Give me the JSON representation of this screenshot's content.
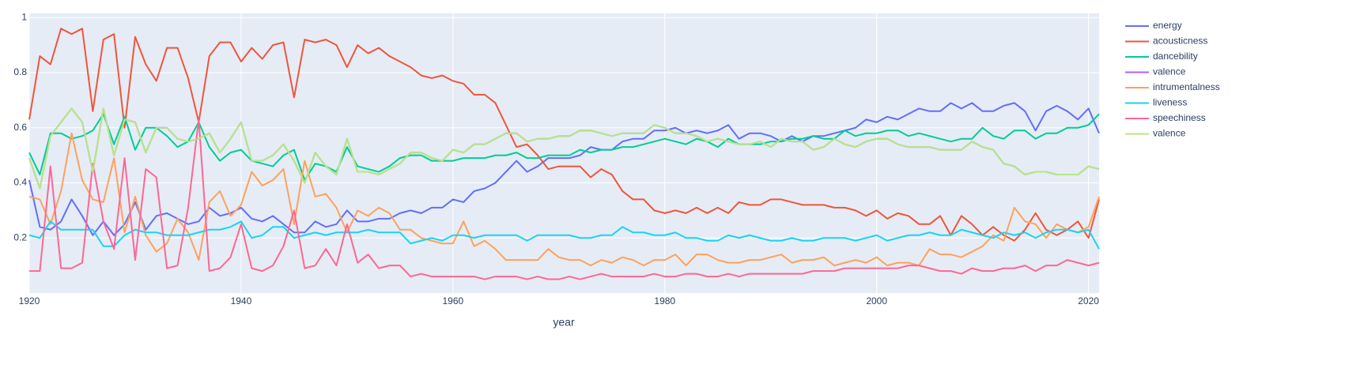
{
  "chart_data": {
    "type": "line",
    "x_label": "year",
    "x": [
      1920,
      1921,
      1922,
      1923,
      1924,
      1925,
      1926,
      1927,
      1928,
      1929,
      1930,
      1931,
      1932,
      1933,
      1934,
      1935,
      1936,
      1937,
      1938,
      1939,
      1940,
      1941,
      1942,
      1943,
      1944,
      1945,
      1946,
      1947,
      1948,
      1949,
      1950,
      1951,
      1952,
      1953,
      1954,
      1955,
      1956,
      1957,
      1958,
      1959,
      1960,
      1961,
      1962,
      1963,
      1964,
      1965,
      1966,
      1967,
      1968,
      1969,
      1970,
      1971,
      1972,
      1973,
      1974,
      1975,
      1976,
      1977,
      1978,
      1979,
      1980,
      1981,
      1982,
      1983,
      1984,
      1985,
      1986,
      1987,
      1988,
      1989,
      1990,
      1991,
      1992,
      1993,
      1994,
      1995,
      1996,
      1997,
      1998,
      1999,
      2000,
      2001,
      2002,
      2003,
      2004,
      2005,
      2006,
      2007,
      2008,
      2009,
      2010,
      2011,
      2012,
      2013,
      2014,
      2015,
      2016,
      2017,
      2018,
      2019,
      2020,
      2021
    ],
    "xlim": [
      1920,
      2021
    ],
    "xticks": [
      1920,
      1940,
      1960,
      1980,
      2000,
      2020
    ],
    "ylim": [
      0,
      1.015
    ],
    "yticks": [
      0.2,
      0.4,
      0.6,
      0.8,
      1
    ],
    "grid": true,
    "series": [
      {
        "name": "energy",
        "color": "#636efa",
        "values": [
          0.41,
          0.24,
          0.23,
          0.26,
          0.34,
          0.28,
          0.21,
          0.26,
          0.21,
          0.25,
          0.33,
          0.23,
          0.28,
          0.29,
          0.27,
          0.25,
          0.26,
          0.31,
          0.28,
          0.29,
          0.31,
          0.27,
          0.26,
          0.28,
          0.25,
          0.22,
          0.22,
          0.26,
          0.24,
          0.25,
          0.3,
          0.26,
          0.26,
          0.27,
          0.27,
          0.29,
          0.3,
          0.29,
          0.31,
          0.31,
          0.34,
          0.33,
          0.37,
          0.38,
          0.4,
          0.44,
          0.48,
          0.44,
          0.46,
          0.49,
          0.49,
          0.49,
          0.5,
          0.53,
          0.52,
          0.52,
          0.55,
          0.56,
          0.56,
          0.59,
          0.59,
          0.6,
          0.58,
          0.59,
          0.58,
          0.59,
          0.61,
          0.56,
          0.58,
          0.58,
          0.57,
          0.55,
          0.57,
          0.55,
          0.57,
          0.57,
          0.58,
          0.59,
          0.6,
          0.63,
          0.62,
          0.64,
          0.63,
          0.65,
          0.67,
          0.66,
          0.66,
          0.69,
          0.67,
          0.69,
          0.66,
          0.66,
          0.68,
          0.69,
          0.66,
          0.59,
          0.66,
          0.68,
          0.66,
          0.63,
          0.67,
          0.58
        ]
      },
      {
        "name": "acousticness",
        "color": "#ef553b",
        "values": [
          0.63,
          0.86,
          0.83,
          0.96,
          0.94,
          0.96,
          0.66,
          0.92,
          0.94,
          0.6,
          0.93,
          0.83,
          0.77,
          0.89,
          0.89,
          0.78,
          0.62,
          0.86,
          0.91,
          0.91,
          0.84,
          0.89,
          0.85,
          0.9,
          0.91,
          0.71,
          0.92,
          0.91,
          0.92,
          0.9,
          0.82,
          0.9,
          0.87,
          0.89,
          0.86,
          0.84,
          0.82,
          0.79,
          0.78,
          0.79,
          0.77,
          0.76,
          0.72,
          0.72,
          0.69,
          0.61,
          0.53,
          0.54,
          0.5,
          0.45,
          0.46,
          0.46,
          0.46,
          0.42,
          0.45,
          0.43,
          0.37,
          0.34,
          0.34,
          0.3,
          0.29,
          0.3,
          0.29,
          0.31,
          0.29,
          0.31,
          0.29,
          0.33,
          0.32,
          0.32,
          0.34,
          0.34,
          0.33,
          0.32,
          0.32,
          0.32,
          0.31,
          0.31,
          0.3,
          0.28,
          0.3,
          0.27,
          0.29,
          0.28,
          0.25,
          0.25,
          0.28,
          0.21,
          0.28,
          0.25,
          0.21,
          0.24,
          0.21,
          0.19,
          0.23,
          0.29,
          0.23,
          0.21,
          0.23,
          0.26,
          0.2,
          0.34
        ]
      },
      {
        "name": "dancebility",
        "color": "#00cc96",
        "values": [
          0.51,
          0.43,
          0.58,
          0.58,
          0.56,
          0.57,
          0.59,
          0.65,
          0.54,
          0.64,
          0.52,
          0.6,
          0.6,
          0.57,
          0.53,
          0.55,
          0.62,
          0.53,
          0.48,
          0.51,
          0.52,
          0.48,
          0.47,
          0.46,
          0.5,
          0.52,
          0.41,
          0.47,
          0.46,
          0.44,
          0.53,
          0.46,
          0.45,
          0.44,
          0.46,
          0.49,
          0.5,
          0.5,
          0.48,
          0.48,
          0.48,
          0.49,
          0.49,
          0.49,
          0.5,
          0.5,
          0.51,
          0.49,
          0.49,
          0.5,
          0.5,
          0.5,
          0.52,
          0.51,
          0.52,
          0.52,
          0.53,
          0.53,
          0.54,
          0.55,
          0.56,
          0.55,
          0.54,
          0.56,
          0.55,
          0.53,
          0.56,
          0.54,
          0.54,
          0.54,
          0.55,
          0.55,
          0.56,
          0.56,
          0.57,
          0.56,
          0.56,
          0.59,
          0.57,
          0.58,
          0.58,
          0.59,
          0.59,
          0.57,
          0.58,
          0.57,
          0.56,
          0.55,
          0.56,
          0.56,
          0.6,
          0.57,
          0.56,
          0.59,
          0.59,
          0.56,
          0.58,
          0.58,
          0.6,
          0.6,
          0.61,
          0.65
        ]
      },
      {
        "name": "valence",
        "color": "#ab63fa",
        "values": [
          0.49,
          0.38,
          0.57,
          0.62,
          0.67,
          0.62,
          0.44,
          0.67,
          0.5,
          0.63,
          0.62,
          0.51,
          0.6,
          0.6,
          0.56,
          0.55,
          0.56,
          0.58,
          0.51,
          0.56,
          0.62,
          0.48,
          0.48,
          0.5,
          0.54,
          0.48,
          0.4,
          0.51,
          0.46,
          0.43,
          0.56,
          0.44,
          0.44,
          0.43,
          0.45,
          0.47,
          0.51,
          0.51,
          0.49,
          0.48,
          0.52,
          0.51,
          0.54,
          0.54,
          0.56,
          0.58,
          0.58,
          0.55,
          0.56,
          0.56,
          0.57,
          0.57,
          0.59,
          0.59,
          0.58,
          0.57,
          0.58,
          0.58,
          0.58,
          0.61,
          0.6,
          0.58,
          0.58,
          0.57,
          0.55,
          0.56,
          0.55,
          0.54,
          0.54,
          0.55,
          0.53,
          0.56,
          0.55,
          0.55,
          0.52,
          0.53,
          0.56,
          0.54,
          0.53,
          0.55,
          0.56,
          0.56,
          0.54,
          0.53,
          0.53,
          0.53,
          0.52,
          0.52,
          0.52,
          0.55,
          0.53,
          0.52,
          0.47,
          0.46,
          0.43,
          0.44,
          0.44,
          0.43,
          0.43,
          0.43,
          0.46,
          0.45
        ]
      },
      {
        "name": "intrumentalness",
        "color": "#ffa15a",
        "values": [
          0.35,
          0.34,
          0.25,
          0.37,
          0.58,
          0.41,
          0.34,
          0.33,
          0.49,
          0.22,
          0.35,
          0.21,
          0.15,
          0.18,
          0.27,
          0.22,
          0.12,
          0.33,
          0.37,
          0.28,
          0.32,
          0.44,
          0.39,
          0.41,
          0.45,
          0.25,
          0.48,
          0.35,
          0.36,
          0.31,
          0.22,
          0.3,
          0.28,
          0.31,
          0.29,
          0.23,
          0.23,
          0.2,
          0.19,
          0.18,
          0.18,
          0.26,
          0.17,
          0.19,
          0.16,
          0.12,
          0.12,
          0.12,
          0.12,
          0.16,
          0.13,
          0.12,
          0.12,
          0.1,
          0.12,
          0.11,
          0.13,
          0.12,
          0.1,
          0.12,
          0.12,
          0.14,
          0.1,
          0.14,
          0.14,
          0.12,
          0.11,
          0.11,
          0.12,
          0.12,
          0.13,
          0.14,
          0.11,
          0.12,
          0.12,
          0.13,
          0.1,
          0.11,
          0.12,
          0.11,
          0.13,
          0.1,
          0.11,
          0.11,
          0.1,
          0.16,
          0.14,
          0.14,
          0.13,
          0.15,
          0.17,
          0.21,
          0.19,
          0.31,
          0.26,
          0.25,
          0.2,
          0.25,
          0.23,
          0.22,
          0.24,
          0.35
        ]
      },
      {
        "name": "liveness",
        "color": "#19d3f3",
        "values": [
          0.21,
          0.2,
          0.26,
          0.23,
          0.23,
          0.23,
          0.23,
          0.17,
          0.17,
          0.21,
          0.23,
          0.22,
          0.22,
          0.21,
          0.21,
          0.21,
          0.22,
          0.23,
          0.23,
          0.24,
          0.26,
          0.2,
          0.21,
          0.24,
          0.24,
          0.2,
          0.21,
          0.22,
          0.21,
          0.22,
          0.22,
          0.22,
          0.23,
          0.22,
          0.22,
          0.22,
          0.18,
          0.19,
          0.2,
          0.19,
          0.21,
          0.21,
          0.2,
          0.21,
          0.21,
          0.21,
          0.21,
          0.19,
          0.21,
          0.21,
          0.21,
          0.21,
          0.2,
          0.2,
          0.21,
          0.21,
          0.24,
          0.22,
          0.22,
          0.21,
          0.21,
          0.22,
          0.2,
          0.2,
          0.19,
          0.19,
          0.21,
          0.2,
          0.21,
          0.2,
          0.19,
          0.19,
          0.2,
          0.19,
          0.19,
          0.2,
          0.2,
          0.2,
          0.19,
          0.2,
          0.21,
          0.19,
          0.2,
          0.21,
          0.21,
          0.22,
          0.21,
          0.21,
          0.23,
          0.22,
          0.21,
          0.2,
          0.22,
          0.21,
          0.22,
          0.2,
          0.22,
          0.23,
          0.23,
          0.22,
          0.23,
          0.16
        ]
      },
      {
        "name": "speechiness",
        "color": "#ff6692",
        "values": [
          0.08,
          0.08,
          0.46,
          0.09,
          0.09,
          0.11,
          0.47,
          0.26,
          0.16,
          0.49,
          0.12,
          0.45,
          0.42,
          0.09,
          0.1,
          0.31,
          0.63,
          0.08,
          0.09,
          0.13,
          0.25,
          0.09,
          0.08,
          0.1,
          0.17,
          0.3,
          0.09,
          0.1,
          0.16,
          0.1,
          0.25,
          0.11,
          0.14,
          0.09,
          0.1,
          0.1,
          0.06,
          0.07,
          0.06,
          0.06,
          0.06,
          0.06,
          0.06,
          0.05,
          0.06,
          0.06,
          0.06,
          0.05,
          0.06,
          0.05,
          0.05,
          0.06,
          0.05,
          0.06,
          0.07,
          0.06,
          0.06,
          0.06,
          0.06,
          0.07,
          0.06,
          0.06,
          0.07,
          0.07,
          0.06,
          0.06,
          0.07,
          0.06,
          0.07,
          0.07,
          0.07,
          0.07,
          0.07,
          0.07,
          0.08,
          0.08,
          0.08,
          0.09,
          0.09,
          0.09,
          0.09,
          0.09,
          0.09,
          0.1,
          0.1,
          0.09,
          0.08,
          0.08,
          0.07,
          0.09,
          0.08,
          0.08,
          0.09,
          0.09,
          0.1,
          0.08,
          0.1,
          0.1,
          0.12,
          0.11,
          0.1,
          0.11
        ]
      },
      {
        "name": "valence",
        "color": "#b6e880",
        "values": [
          0.49,
          0.38,
          0.57,
          0.62,
          0.67,
          0.62,
          0.44,
          0.67,
          0.5,
          0.63,
          0.62,
          0.51,
          0.6,
          0.6,
          0.56,
          0.55,
          0.56,
          0.58,
          0.51,
          0.56,
          0.62,
          0.48,
          0.48,
          0.5,
          0.54,
          0.48,
          0.4,
          0.51,
          0.46,
          0.43,
          0.56,
          0.44,
          0.44,
          0.43,
          0.45,
          0.47,
          0.51,
          0.51,
          0.49,
          0.48,
          0.52,
          0.51,
          0.54,
          0.54,
          0.56,
          0.58,
          0.58,
          0.55,
          0.56,
          0.56,
          0.57,
          0.57,
          0.59,
          0.59,
          0.58,
          0.57,
          0.58,
          0.58,
          0.58,
          0.61,
          0.6,
          0.58,
          0.58,
          0.57,
          0.55,
          0.56,
          0.55,
          0.54,
          0.54,
          0.55,
          0.53,
          0.56,
          0.55,
          0.55,
          0.52,
          0.53,
          0.56,
          0.54,
          0.53,
          0.55,
          0.56,
          0.56,
          0.54,
          0.53,
          0.53,
          0.53,
          0.52,
          0.52,
          0.52,
          0.55,
          0.53,
          0.52,
          0.47,
          0.46,
          0.43,
          0.44,
          0.44,
          0.43,
          0.43,
          0.43,
          0.46,
          0.45
        ]
      }
    ]
  }
}
